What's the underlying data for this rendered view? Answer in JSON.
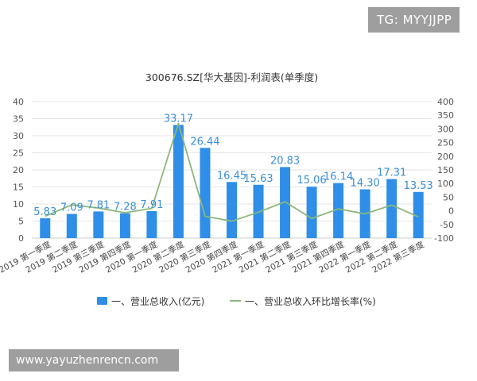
{
  "watermark_top": "TG: MYYJJPP",
  "watermark_bottom": "www.yayuzhenrencn.com",
  "chart_data": {
    "type": "bar",
    "title": "300676.SZ[华大基因]-利润表(单季度)",
    "categories": [
      "2019 第一季度",
      "2019 第二季度",
      "2019 第三季度",
      "2019 第四季度",
      "2020 第一季度",
      "2020 第二季度",
      "2020 第三季度",
      "2020 第四季度",
      "2021 第一季度",
      "2021 第二季度",
      "2021 第三季度",
      "2021 第四季度",
      "2022 第一季度",
      "2022 第二季度",
      "2022 第三季度"
    ],
    "series": [
      {
        "name": "一、营业总收入(亿元)",
        "type": "bar",
        "axis": "left",
        "color": "#2e8ee8",
        "values": [
          5.83,
          7.09,
          7.81,
          7.28,
          7.91,
          33.17,
          26.44,
          16.45,
          15.63,
          20.83,
          15.06,
          16.14,
          14.3,
          17.31,
          13.53
        ],
        "labels": [
          "5.83",
          "7.09",
          "7.81",
          "7.28",
          "7.91",
          "33.17",
          "26.44",
          "16.45",
          "15.63",
          "20.83",
          "15.06",
          "16.14",
          "14.30",
          "17.31",
          "13.53"
        ]
      },
      {
        "name": "一、营业总收入环比增长率(%)",
        "type": "line",
        "axis": "right",
        "color": "#8cb77a",
        "values": [
          -20,
          22,
          10,
          -7,
          9,
          320,
          -20,
          -38,
          -5,
          33,
          -28,
          7,
          -11,
          21,
          -22
        ]
      }
    ],
    "y_left": {
      "min": 0,
      "max": 40,
      "ticks": [
        0,
        5,
        10,
        15,
        20,
        25,
        30,
        35,
        40
      ]
    },
    "y_right": {
      "min": -100,
      "max": 400,
      "ticks": [
        -100,
        -50,
        0,
        50,
        100,
        150,
        200,
        250,
        300,
        350,
        400
      ]
    },
    "grid": true,
    "legend_position": "bottom"
  }
}
